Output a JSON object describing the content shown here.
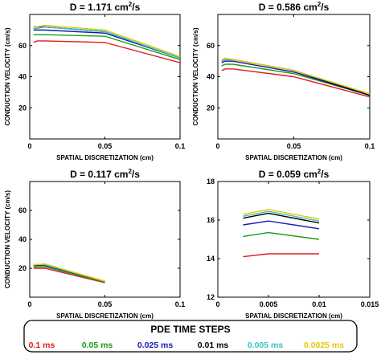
{
  "chart_data": [
    {
      "type": "line",
      "title": "D = 1.171 cm",
      "title_sup": "2",
      "title_unit_tail": "/s",
      "xlabel": "SPATIAL DISCRETIZATION (cm)",
      "ylabel": "CONDUCTION VELOCITY (cm/s)",
      "xlim": [
        0,
        0.1
      ],
      "ylim": [
        0,
        80
      ],
      "xticks": [
        0,
        0.05,
        0.1
      ],
      "xtick_labels": [
        "0",
        "0.05",
        "0.1"
      ],
      "yticks": [
        0,
        20,
        40,
        60,
        80
      ],
      "ytick_labels": [
        "",
        "20",
        "40",
        "60",
        ""
      ],
      "x": [
        0.0025,
        0.005,
        0.01,
        0.05,
        0.1
      ],
      "series": [
        {
          "name": "0.1 ms",
          "color": "#e41a1c",
          "values": [
            62,
            63,
            63,
            62,
            49
          ]
        },
        {
          "name": "0.05 ms",
          "color": "#1a9a1a",
          "values": [
            67,
            67,
            67,
            66,
            51
          ]
        },
        {
          "name": "0.025 ms",
          "color": "#1a1ab4",
          "values": [
            70,
            70,
            70,
            68,
            52
          ]
        },
        {
          "name": "0.01 ms",
          "color": "#000000",
          "values": [
            72,
            72,
            72,
            69,
            52
          ]
        },
        {
          "name": "0.005 ms",
          "color": "#33c4c4",
          "values": [
            71,
            71,
            72,
            69,
            52
          ]
        },
        {
          "name": "0.0025 ms",
          "color": "#e6c800",
          "values": [
            72,
            72,
            73,
            70,
            53
          ]
        }
      ]
    },
    {
      "type": "line",
      "title": "D = 0.586 cm",
      "title_sup": "2",
      "title_unit_tail": "/s",
      "xlabel": "SPATIAL DISCRETIZATION (cm)",
      "ylabel": "CONDUCTION VELOCITY (cm/s)",
      "xlim": [
        0,
        0.1
      ],
      "ylim": [
        0,
        80
      ],
      "xticks": [
        0,
        0.05,
        0.1
      ],
      "xtick_labels": [
        "0",
        "0.05",
        "0.1"
      ],
      "yticks": [
        0,
        20,
        40,
        60,
        80
      ],
      "ytick_labels": [
        "",
        "20",
        "40",
        "60",
        ""
      ],
      "x": [
        0.0025,
        0.005,
        0.01,
        0.05,
        0.1
      ],
      "series": [
        {
          "name": "0.1 ms",
          "color": "#e41a1c",
          "values": [
            44,
            45,
            45,
            40,
            27
          ]
        },
        {
          "name": "0.05 ms",
          "color": "#1a9a1a",
          "values": [
            47,
            48,
            48,
            42,
            28
          ]
        },
        {
          "name": "0.025 ms",
          "color": "#1a1ab4",
          "values": [
            49,
            50,
            50,
            43,
            28
          ]
        },
        {
          "name": "0.01 ms",
          "color": "#000000",
          "values": [
            50,
            51,
            51,
            44,
            28
          ]
        },
        {
          "name": "0.005 ms",
          "color": "#33c4c4",
          "values": [
            50,
            51,
            51,
            44,
            29
          ]
        },
        {
          "name": "0.0025 ms",
          "color": "#e6c800",
          "values": [
            51,
            52,
            51,
            44,
            29
          ]
        }
      ]
    },
    {
      "type": "line",
      "title": "D = 0.117 cm",
      "title_sup": "2",
      "title_unit_tail": "/s",
      "xlabel": "SPATIAL DISCRETIZATION (cm)",
      "ylabel": "CONDUCTION VELOCITY (cm/s)",
      "xlim": [
        0,
        0.1
      ],
      "ylim": [
        0,
        80
      ],
      "xticks": [
        0,
        0.05,
        0.1
      ],
      "xtick_labels": [
        "0",
        "0.05",
        "0.1"
      ],
      "yticks": [
        0,
        20,
        40,
        60,
        80
      ],
      "ytick_labels": [
        "",
        "20",
        "40",
        "60",
        ""
      ],
      "x": [
        0.0025,
        0.005,
        0.01,
        0.05
      ],
      "series": [
        {
          "name": "0.1 ms",
          "color": "#e41a1c",
          "values": [
            20,
            20,
            20,
            10
          ]
        },
        {
          "name": "0.05 ms",
          "color": "#1a9a1a",
          "values": [
            21,
            21,
            21,
            10.5
          ]
        },
        {
          "name": "0.025 ms",
          "color": "#1a1ab4",
          "values": [
            22,
            22,
            22,
            11
          ]
        },
        {
          "name": "0.01 ms",
          "color": "#000000",
          "values": [
            22,
            22,
            22.5,
            11
          ]
        },
        {
          "name": "0.005 ms",
          "color": "#33c4c4",
          "values": [
            22,
            22.5,
            22.5,
            11
          ]
        },
        {
          "name": "0.0025 ms",
          "color": "#e6c800",
          "values": [
            22.5,
            22.5,
            23,
            11
          ]
        }
      ]
    },
    {
      "type": "line",
      "title": "D = 0.059 cm",
      "title_sup": "2",
      "title_unit_tail": "/s",
      "xlabel": "SPATIAL DISCRETIZATION (cm)",
      "ylabel": "",
      "xlim": [
        0,
        0.015
      ],
      "ylim": [
        12,
        18
      ],
      "xticks": [
        0,
        0.005,
        0.01,
        0.015
      ],
      "xtick_labels": [
        "0",
        "0.005",
        "0.01",
        "0.015"
      ],
      "yticks": [
        12,
        14,
        16,
        18
      ],
      "ytick_labels": [
        "12",
        "14",
        "16",
        "18"
      ],
      "x": [
        0.0025,
        0.005,
        0.01
      ],
      "series": [
        {
          "name": "0.1 ms",
          "color": "#e41a1c",
          "values": [
            14.1,
            14.25,
            14.25
          ]
        },
        {
          "name": "0.05 ms",
          "color": "#1a9a1a",
          "values": [
            15.15,
            15.35,
            15.0
          ]
        },
        {
          "name": "0.025 ms",
          "color": "#1a1ab4",
          "values": [
            15.75,
            15.95,
            15.55
          ]
        },
        {
          "name": "0.01 ms",
          "color": "#000000",
          "values": [
            16.1,
            16.35,
            15.85
          ]
        },
        {
          "name": "0.005 ms",
          "color": "#33c4c4",
          "values": [
            16.2,
            16.45,
            15.95
          ]
        },
        {
          "name": "0.0025 ms",
          "color": "#e6c800",
          "values": [
            16.3,
            16.55,
            16.05
          ]
        }
      ]
    }
  ],
  "legend": {
    "title": "PDE TIME STEPS",
    "items": [
      {
        "label": "0.1 ms",
        "color": "#e41a1c"
      },
      {
        "label": "0.05 ms",
        "color": "#1a9a1a"
      },
      {
        "label": "0.025 ms",
        "color": "#1a1ab4"
      },
      {
        "label": "0.01 ms",
        "color": "#000000"
      },
      {
        "label": "0.005 ms",
        "color": "#33c4c4"
      },
      {
        "label": "0.0025 ms",
        "color": "#e6c800"
      }
    ]
  }
}
